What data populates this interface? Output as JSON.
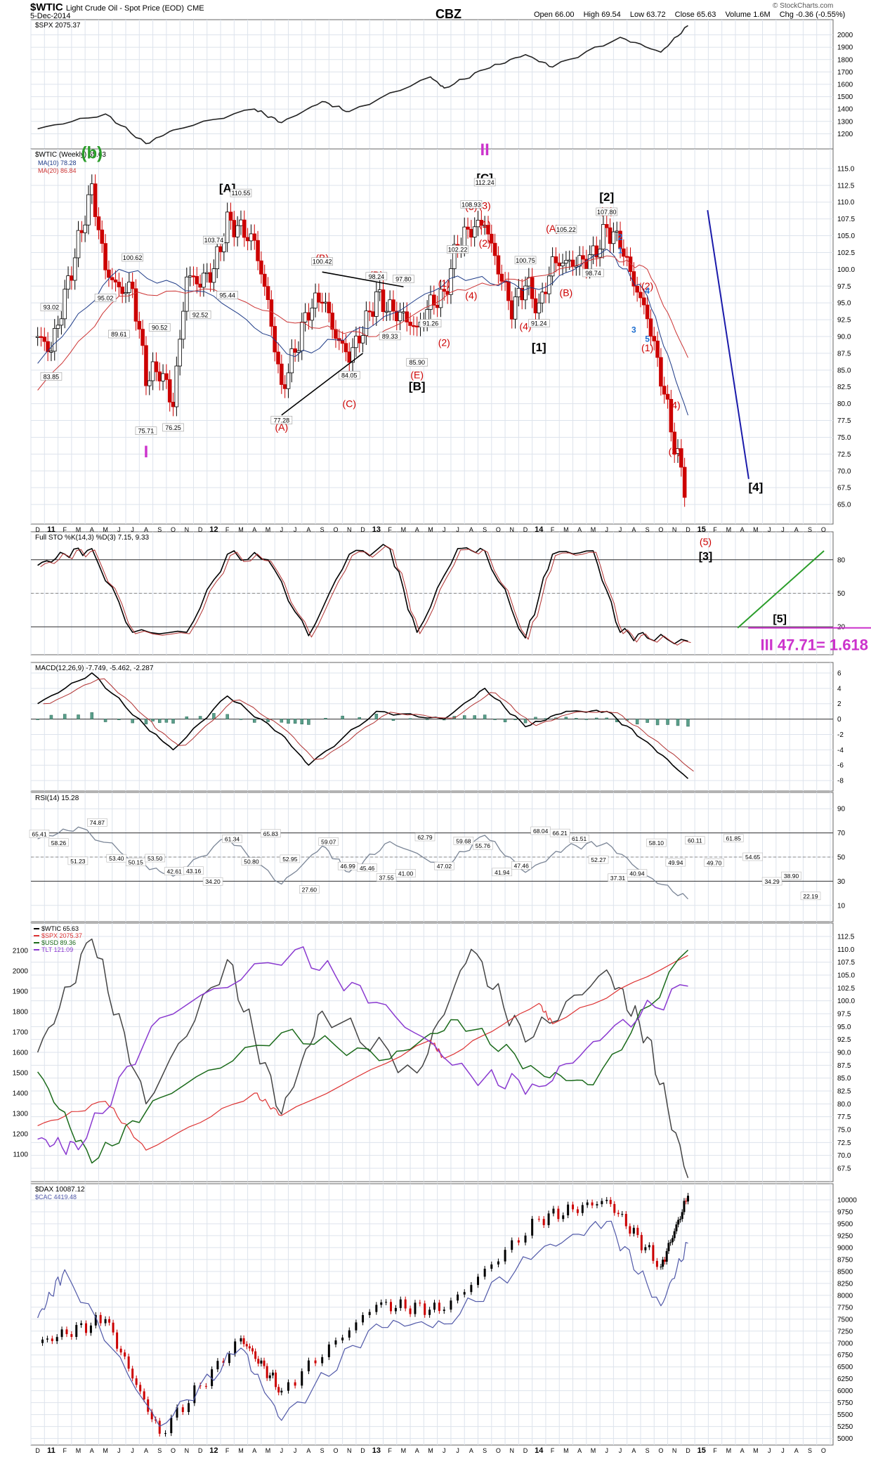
{
  "header": {
    "symbol": "$WTIC",
    "name": "Light Crude Oil - Spot Price (EOD)",
    "exchange": "CME",
    "date": "5-Dec-2014",
    "credit": "© StockCharts.com",
    "watermark": "CBZ",
    "stats": {
      "open": "Open 66.00",
      "high": "High 69.54",
      "low": "Low 63.72",
      "close": "Close 65.63",
      "volume": "Volume 1.6M",
      "chg": "Chg -0.36 (-0.55%)"
    }
  },
  "time_axis": {
    "labels": [
      "D",
      "11",
      "F",
      "M",
      "A",
      "M",
      "J",
      "J",
      "A",
      "S",
      "O",
      "N",
      "D",
      "12",
      "F",
      "M",
      "A",
      "M",
      "J",
      "J",
      "A",
      "S",
      "O",
      "N",
      "D",
      "13",
      "F",
      "M",
      "A",
      "M",
      "J",
      "J",
      "A",
      "S",
      "O",
      "N",
      "D",
      "14",
      "F",
      "M",
      "A",
      "M",
      "J",
      "J",
      "A",
      "S",
      "O",
      "N",
      "D",
      "15",
      "F",
      "M",
      "A",
      "M",
      "J",
      "J",
      "A",
      "S",
      "O"
    ],
    "bold": [
      "11",
      "12",
      "13",
      "14",
      "15"
    ]
  },
  "panels": {
    "spx": {
      "legend": "$SPX 2075.37",
      "ticks": [
        "2000",
        "1900",
        "1800",
        "1700",
        "1600",
        "1500",
        "1400",
        "1300",
        "1200"
      ]
    },
    "price": {
      "legend_title": "$WTIC (Weekly) 65.63",
      "ma10": "MA(10) 78.28",
      "ma20": "MA(20) 86.84",
      "ticks": [
        "115.0",
        "112.5",
        "110.0",
        "107.5",
        "105.0",
        "102.5",
        "100.0",
        "97.5",
        "95.0",
        "92.5",
        "90.0",
        "87.5",
        "85.0",
        "82.5",
        "80.0",
        "77.5",
        "75.0",
        "72.5",
        "70.0",
        "67.5",
        "65.0"
      ]
    },
    "sto": {
      "legend": "Full STO %K(14,3) %D(3) 7.15, 9.33",
      "ticks": [
        "80",
        "50",
        "20"
      ]
    },
    "macd": {
      "legend": "MACD(12,26,9) -7.749, -5.462, -2.287",
      "ticks": [
        "6",
        "4",
        "2",
        "0",
        "-2",
        "-4",
        "-6",
        "-8"
      ]
    },
    "rsi": {
      "legend": "RSI(14) 15.28",
      "ticks": [
        "90",
        "70",
        "50",
        "30",
        "10"
      ]
    },
    "compare": {
      "legend": [
        "$WTIC 65.63",
        "$SPX 2075.37",
        "$USD 89.36",
        "TLT 121.09"
      ],
      "left_ticks": [
        "2100",
        "2000",
        "1900",
        "1800",
        "1700",
        "1600",
        "1500",
        "1400",
        "1300",
        "1200",
        "1100"
      ],
      "right_ticks": [
        "112.5",
        "110.0",
        "107.5",
        "105.0",
        "102.5",
        "100.0",
        "97.5",
        "95.0",
        "92.5",
        "90.0",
        "87.5",
        "85.0",
        "82.5",
        "80.0",
        "77.5",
        "75.0",
        "72.5",
        "70.0",
        "67.5"
      ]
    },
    "dax": {
      "legend": [
        "$DAX 10087.12",
        "$CAC 4419.48"
      ],
      "ticks": [
        "10000",
        "9750",
        "9500",
        "9250",
        "9000",
        "8750",
        "8500",
        "8250",
        "8000",
        "7750",
        "7500",
        "7250",
        "7000",
        "6750",
        "6500",
        "6250",
        "6000",
        "5750",
        "5500",
        "5250",
        "5000"
      ]
    }
  },
  "annotations": {
    "wave_b": "(b)",
    "wave_I": "I",
    "wave_II": "II",
    "wave_A_bracket": "[A]",
    "wave_B_bracket": "[B]",
    "wave_C_bracket": "[C]",
    "wave_1_bracket": "[1]",
    "wave_2_bracket": "[2]",
    "wave_4_bracket": "[4]",
    "sto_wave_3": "[3]",
    "sto_wave_5": "(5)",
    "sto_wave_5b": "[5]",
    "target": "III  47.71= 1.618",
    "red_labels": [
      "(A)",
      "(B)",
      "(C)",
      "(D)",
      "(E)",
      "(1)",
      "(2)",
      "(3)",
      "(4)",
      "(1)",
      "(2)",
      "(3)",
      "(4)",
      "(A)",
      "(B)",
      "(C)",
      "(1)",
      "(2)",
      "(3)",
      "(4)"
    ],
    "blue_labels": [
      "1",
      "2",
      "3",
      "4",
      "5"
    ],
    "price_labels": [
      "93.02",
      "83.85",
      "95.02",
      "89.61",
      "100.62",
      "75.71",
      "90.52",
      "76.25",
      "92.52",
      "103.74",
      "95.44",
      "110.55",
      "77.28",
      "100.42",
      "84.05",
      "98.24",
      "89.33",
      "97.80",
      "85.90",
      "91.26",
      "102.22",
      "108.93",
      "112.24",
      "100.75",
      "91.24",
      "105.22",
      "98.74",
      "107.80"
    ],
    "rsi_labels": [
      "65.41",
      "58.26",
      "51.23",
      "74.87",
      "53.40",
      "50.15",
      "53.50",
      "42.61",
      "43.16",
      "34.20",
      "61.34",
      "50.80",
      "65.83",
      "52.95",
      "27.60",
      "59.07",
      "46.99",
      "45.46",
      "37.55",
      "41.00",
      "62.79",
      "47.02",
      "59.68",
      "55.76",
      "41.94",
      "47.46",
      "68.04",
      "66.21",
      "61.51",
      "52.27",
      "37.31",
      "40.94",
      "58.10",
      "49.94",
      "60.11",
      "49.70",
      "61.85",
      "54.65",
      "34.29",
      "38.90",
      "22.19"
    ]
  },
  "colors": {
    "price_up": "#000000",
    "price_down": "#cc0000",
    "red_label": "#cc0000",
    "magenta": "#cc33cc",
    "green": "#2a9d2a",
    "blue_line": "#1a1aaa",
    "wave_blue": "#1f6fd0"
  },
  "chart_data": [
    {
      "type": "line",
      "title": "$SPX 2075.37",
      "ylim": [
        1100,
        2100
      ],
      "x": [
        "2010-12",
        "2011-05",
        "2011-08",
        "2011-10",
        "2012-04",
        "2012-06",
        "2012-09",
        "2012-11",
        "2013-05",
        "2013-06",
        "2013-09",
        "2013-12",
        "2014-02",
        "2014-07",
        "2014-10",
        "2014-12"
      ],
      "values": [
        1240,
        1360,
        1120,
        1230,
        1400,
        1290,
        1460,
        1380,
        1660,
        1570,
        1720,
        1840,
        1740,
        1980,
        1860,
        2075
      ]
    },
    {
      "type": "line",
      "title": "$WTIC (Weekly) 65.63",
      "ylim": [
        62.5,
        117.5
      ],
      "series": [
        {
          "name": "$WTIC (Weekly)",
          "x": [
            "2010-12",
            "2011-01",
            "2011-02",
            "2011-03",
            "2011-04",
            "2011-05",
            "2011-06",
            "2011-07",
            "2011-08",
            "2011-09",
            "2011-10",
            "2011-11",
            "2011-12",
            "2012-01",
            "2012-02",
            "2012-03",
            "2012-04",
            "2012-05",
            "2012-06",
            "2012-07",
            "2012-08",
            "2012-09",
            "2012-10",
            "2012-11",
            "2012-12",
            "2013-01",
            "2013-02",
            "2013-03",
            "2013-04",
            "2013-05",
            "2013-06",
            "2013-07",
            "2013-08",
            "2013-09",
            "2013-10",
            "2013-11",
            "2013-12",
            "2014-01",
            "2014-02",
            "2014-03",
            "2014-04",
            "2014-05",
            "2014-06",
            "2014-07",
            "2014-08",
            "2014-09",
            "2014-10",
            "2014-11",
            "2014-12"
          ],
          "values": [
            90,
            88,
            96,
            104,
            112,
            100,
            97,
            97,
            84,
            85,
            80,
            99,
            98,
            100,
            107,
            106,
            104,
            95,
            82,
            88,
            94,
            96,
            90,
            87,
            91,
            96,
            94,
            93,
            91,
            95,
            96,
            104,
            106,
            107,
            100,
            94,
            98,
            94,
            101,
            101,
            101,
            102,
            106,
            104,
            98,
            93,
            84,
            74,
            65.63
          ]
        },
        {
          "name": "MA(10) 78.28",
          "x": [
            "2010-12",
            "2011-06",
            "2012-01",
            "2012-07",
            "2013-01",
            "2013-07",
            "2014-01",
            "2014-06",
            "2014-09",
            "2014-12"
          ],
          "values": [
            86,
            100,
            96,
            87,
            92,
            99,
            97,
            103,
            96,
            78.28
          ]
        },
        {
          "name": "MA(20) 86.84",
          "x": [
            "2010-12",
            "2011-06",
            "2012-01",
            "2012-07",
            "2013-01",
            "2013-07",
            "2014-01",
            "2014-06",
            "2014-09",
            "2014-12"
          ],
          "values": [
            82,
            96,
            97,
            92,
            90,
            97,
            99,
            102,
            100,
            86.84
          ]
        }
      ]
    },
    {
      "type": "line",
      "title": "Full STO %K(14,3) %D(3) 7.15, 9.33",
      "ylim": [
        0,
        100
      ],
      "x": [
        "2010-12",
        "2011-02",
        "2011-04",
        "2011-07",
        "2011-11",
        "2012-02",
        "2012-05",
        "2012-08",
        "2012-11",
        "2013-02",
        "2013-04",
        "2013-07",
        "2013-09",
        "2013-12",
        "2014-02",
        "2014-05",
        "2014-07",
        "2014-09",
        "2014-12"
      ],
      "values": [
        75,
        85,
        90,
        15,
        15,
        85,
        80,
        12,
        85,
        90,
        15,
        90,
        88,
        10,
        85,
        88,
        15,
        10,
        7.15
      ]
    },
    {
      "type": "line",
      "title": "MACD(12,26,9) -7.749, -5.462, -2.287",
      "ylim": [
        -9,
        7
      ],
      "x": [
        "2010-12",
        "2011-04",
        "2011-08",
        "2011-10",
        "2012-02",
        "2012-06",
        "2012-08",
        "2013-01",
        "2013-06",
        "2013-09",
        "2013-12",
        "2014-03",
        "2014-06",
        "2014-09",
        "2014-12"
      ],
      "values": [
        2,
        6,
        -1,
        -4,
        3,
        -2,
        -6,
        1,
        0,
        4,
        -1,
        1,
        1,
        -3,
        -7.749
      ]
    },
    {
      "type": "line",
      "title": "RSI(14) 15.28",
      "ylim": [
        0,
        100
      ],
      "x": [
        "2010-12",
        "2011-03",
        "2011-08",
        "2011-10",
        "2012-02",
        "2012-06",
        "2012-09",
        "2012-11",
        "2013-02",
        "2013-06",
        "2013-09",
        "2013-12",
        "2014-03",
        "2014-06",
        "2014-09",
        "2014-12"
      ],
      "values": [
        65,
        74.87,
        42.61,
        34.2,
        65.83,
        27.6,
        59.07,
        37.55,
        62.79,
        41.94,
        68.04,
        37.31,
        58.1,
        61.85,
        34.29,
        15.28
      ]
    },
    {
      "type": "line",
      "title": "",
      "series": [
        {
          "name": "$WTIC 65.63",
          "x": [
            "2010-12",
            "2011-04",
            "2011-08",
            "2012-02",
            "2012-06",
            "2012-09",
            "2013-04",
            "2013-08",
            "2013-12",
            "2014-06",
            "2014-09",
            "2014-12"
          ],
          "values": [
            90,
            112,
            80,
            108,
            78,
            98,
            86,
            110,
            92,
            106,
            93,
            65.63
          ]
        },
        {
          "name": "$SPX 2075.37",
          "x": [
            "2010-12",
            "2011-05",
            "2011-08",
            "2012-04",
            "2012-06",
            "2013-05",
            "2013-06",
            "2014-01",
            "2014-02",
            "2014-12"
          ],
          "values": [
            1240,
            1360,
            1120,
            1400,
            1290,
            1660,
            1570,
            1840,
            1740,
            2075.37
          ]
        },
        {
          "name": "$USD 89.36",
          "x": [
            "2010-12",
            "2011-04",
            "2011-09",
            "2012-06",
            "2013-02",
            "2013-07",
            "2014-01",
            "2014-05",
            "2014-12"
          ],
          "values": [
            80,
            73,
            78,
            83,
            81,
            84,
            80,
            79,
            89.36
          ]
        },
        {
          "name": "TLT 121.09",
          "x": [
            "2010-12",
            "2011-03",
            "2011-09",
            "2012-07",
            "2013-01",
            "2013-08",
            "2014-01",
            "2014-06",
            "2014-12"
          ],
          "values": [
            92,
            90,
            115,
            128,
            118,
            104,
            102,
            112,
            121.09
          ]
        }
      ]
    },
    {
      "type": "line",
      "title": "$DAX 10087.12",
      "ylim": [
        5000,
        10250
      ],
      "series": [
        {
          "name": "$DAX 10087.12",
          "x": [
            "2010-12",
            "2011-05",
            "2011-09",
            "2012-03",
            "2012-06",
            "2013-01",
            "2013-06",
            "2014-01",
            "2014-06",
            "2014-10",
            "2014-12"
          ],
          "values": [
            7000,
            7500,
            5100,
            7100,
            6000,
            7800,
            7700,
            9600,
            10000,
            8600,
            10087.12
          ]
        },
        {
          "name": "$CAC 4419.48",
          "x": [
            "2010-12",
            "2011-02",
            "2011-09",
            "2012-03",
            "2012-06",
            "2013-01",
            "2013-06",
            "2014-01",
            "2014-06",
            "2014-10",
            "2014-12"
          ],
          "values": [
            3800,
            4200,
            2900,
            3550,
            2950,
            3750,
            3750,
            4350,
            4600,
            3900,
            4419.48
          ]
        }
      ]
    }
  ]
}
